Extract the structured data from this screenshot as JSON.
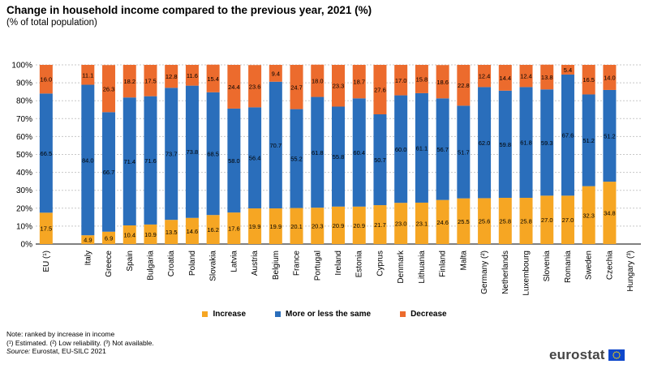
{
  "header": {
    "title": "Change in household income compared to the previous year, 2021 (%)",
    "subtitle": "(% of total population)"
  },
  "legend": {
    "items": [
      {
        "label": "Increase",
        "color": "#f6a623"
      },
      {
        "label": "More or less the same",
        "color": "#2a6ebb"
      },
      {
        "label": "Decrease",
        "color": "#ec6b2d"
      }
    ]
  },
  "notes": {
    "line1": "Note: ranked by increase in income",
    "line2": "(¹) Estimated. (²) Low reliability. (³) Not available.",
    "source_label": "Source:",
    "source_text": " Eurostat, EU-SILC 2021"
  },
  "logo": {
    "text": "eurostat"
  },
  "chart_data": {
    "type": "bar",
    "stacked": true,
    "categories": [
      "EU (¹)",
      "",
      "Italy",
      "Greece",
      "Spain",
      "Bulgaria",
      "Croatia",
      "Poland",
      "Slovakia",
      "Latvia",
      "Austria",
      "Belgium",
      "France",
      "Portugal",
      "Ireland",
      "Estonia",
      "Cyprus",
      "Denmark",
      "Lithuania",
      "Finland",
      "Malta",
      "Germany (²)",
      "Netherlands",
      "Luxembourg",
      "Slovenia",
      "Romania",
      "Sweden",
      "Czechia",
      "Hungary (³)"
    ],
    "series": [
      {
        "name": "Increase",
        "color": "#f6a623",
        "values": [
          17.5,
          null,
          4.9,
          6.9,
          10.4,
          10.9,
          13.5,
          14.6,
          16.2,
          17.6,
          19.9,
          19.9,
          20.1,
          20.3,
          20.9,
          20.9,
          21.7,
          23.0,
          23.1,
          24.6,
          25.5,
          25.6,
          25.8,
          25.8,
          27.0,
          27.0,
          32.3,
          34.8,
          null
        ]
      },
      {
        "name": "More or less the same",
        "color": "#2a6ebb",
        "values": [
          66.5,
          null,
          84.0,
          66.7,
          71.4,
          71.6,
          73.7,
          73.8,
          68.5,
          58.0,
          56.4,
          70.7,
          55.2,
          61.8,
          55.8,
          60.4,
          50.7,
          60.0,
          61.1,
          56.7,
          51.7,
          62.0,
          59.8,
          61.8,
          59.3,
          67.6,
          51.2,
          51.2,
          null
        ]
      },
      {
        "name": "Decrease",
        "color": "#ec6b2d",
        "values": [
          16.0,
          null,
          11.1,
          26.3,
          18.2,
          17.5,
          12.8,
          11.6,
          15.4,
          24.4,
          23.6,
          9.4,
          24.7,
          18.0,
          23.3,
          18.7,
          27.6,
          17.0,
          15.8,
          18.6,
          22.8,
          12.4,
          14.4,
          12.4,
          13.8,
          5.4,
          16.5,
          14.0,
          null
        ]
      }
    ],
    "y_ticks": [
      "0%",
      "10%",
      "20%",
      "30%",
      "40%",
      "50%",
      "60%",
      "70%",
      "80%",
      "90%",
      "100%"
    ],
    "ylim": [
      0,
      100
    ],
    "grid": true,
    "legend_position": "bottom"
  }
}
